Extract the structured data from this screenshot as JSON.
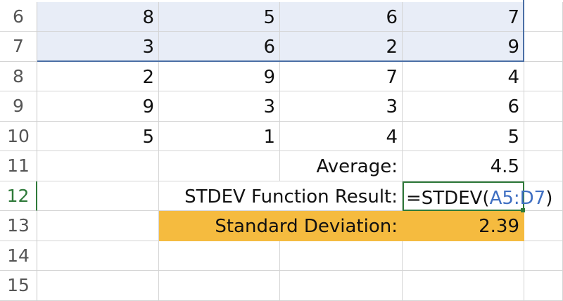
{
  "sheet": {
    "rows": [
      {
        "num": "6",
        "cells": [
          "8",
          "5",
          "6",
          "7"
        ]
      },
      {
        "num": "7",
        "cells": [
          "3",
          "6",
          "2",
          "9"
        ]
      },
      {
        "num": "8",
        "cells": [
          "2",
          "9",
          "7",
          "4"
        ]
      },
      {
        "num": "9",
        "cells": [
          "9",
          "3",
          "3",
          "6"
        ]
      },
      {
        "num": "10",
        "cells": [
          "5",
          "1",
          "4",
          "5"
        ]
      },
      {
        "num": "11",
        "cells": [
          "",
          "",
          "Average:",
          "4.5"
        ]
      },
      {
        "num": "12",
        "cells": [
          "",
          "STDEV Function Result:",
          "",
          ""
        ]
      },
      {
        "num": "13",
        "cells": [
          "",
          "Standard Deviation:",
          "",
          "2.39"
        ]
      },
      {
        "num": "14",
        "cells": [
          "",
          "",
          "",
          ""
        ]
      },
      {
        "num": "15",
        "cells": [
          "",
          "",
          "",
          ""
        ]
      }
    ],
    "active_cell_formula": {
      "prefix": "=STDEV(",
      "range": "A5:D7",
      "suffix": ")"
    },
    "selected_range_color": "#e8edf7",
    "highlight_color": "#f5bb3f",
    "active_color": "#2f7a3a",
    "reference_color": "#3f6fc2"
  }
}
